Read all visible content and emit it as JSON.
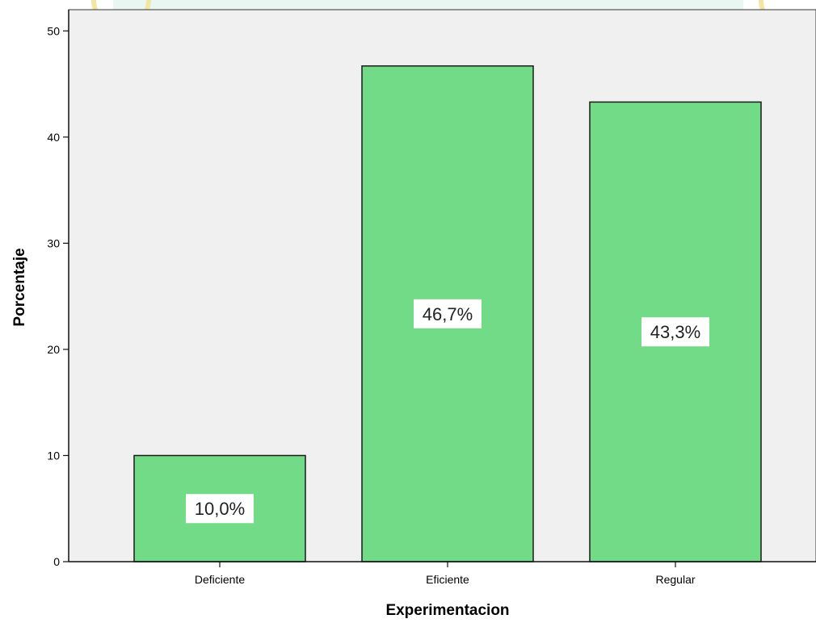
{
  "chart_data": {
    "type": "bar",
    "categories": [
      "Deficiente",
      "Eficiente",
      "Regular"
    ],
    "values": [
      10.0,
      46.7,
      43.3
    ],
    "data_labels": [
      "10,0%",
      "46,7%",
      "43,3%"
    ],
    "title": "",
    "xlabel": "Experimentacion",
    "ylabel": "Porcentaje",
    "ylim": [
      0,
      52
    ],
    "yticks": [
      0,
      10,
      20,
      30,
      40,
      50
    ],
    "grid": false,
    "legend": "none",
    "colors": {
      "bar": "#72DB87",
      "bar_stroke": "#1a1a1a",
      "plot_background": "#F0F0F0",
      "data_label_background": "#FFFFFF",
      "watermark": "#F5E9A6"
    }
  }
}
